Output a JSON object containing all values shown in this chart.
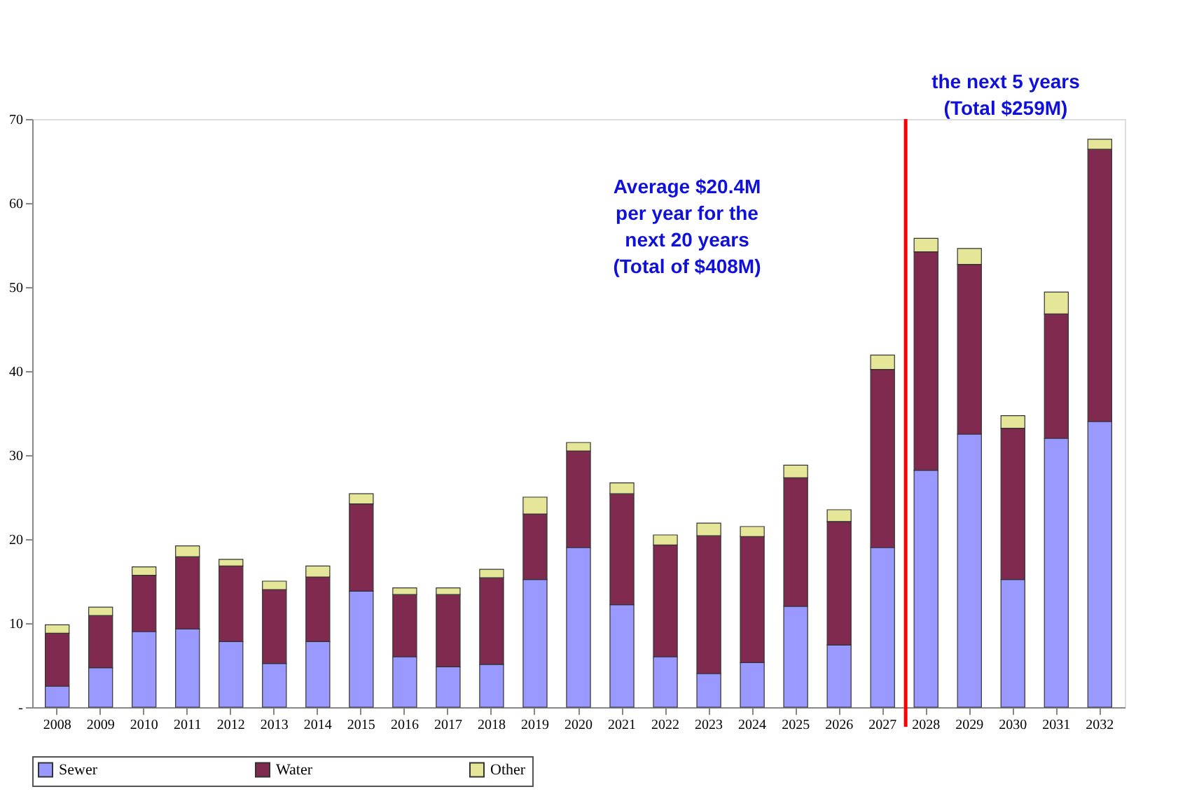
{
  "chart_data": {
    "type": "bar",
    "stacked": true,
    "categories": [
      "2008",
      "2009",
      "2010",
      "2011",
      "2012",
      "2013",
      "2014",
      "2015",
      "2016",
      "2017",
      "2018",
      "2019",
      "2020",
      "2021",
      "2022",
      "2023",
      "2024",
      "2025",
      "2026",
      "2027",
      "2028",
      "2029",
      "2030",
      "2031",
      "2032"
    ],
    "series": [
      {
        "name": "Sewer",
        "color": "#9999ff",
        "values": [
          2.5,
          4.7,
          9.0,
          9.3,
          7.8,
          5.2,
          7.8,
          13.8,
          6.0,
          4.8,
          5.1,
          15.2,
          19.0,
          12.2,
          6.0,
          4.0,
          5.3,
          12.0,
          7.4,
          19.0,
          28.2,
          32.5,
          15.2,
          32.0,
          34.0
        ]
      },
      {
        "name": "Water",
        "color": "#7f2a4e",
        "values": [
          6.3,
          6.2,
          6.7,
          8.6,
          9.0,
          8.8,
          7.7,
          10.4,
          7.4,
          8.6,
          10.3,
          7.8,
          11.5,
          13.2,
          13.3,
          16.4,
          15.0,
          15.3,
          14.7,
          21.2,
          26.0,
          20.2,
          18.0,
          14.8,
          32.4
        ]
      },
      {
        "name": "Other",
        "color": "#e6e699",
        "values": [
          1.0,
          1.0,
          1.0,
          1.3,
          0.8,
          1.0,
          1.3,
          1.2,
          0.8,
          0.8,
          1.0,
          2.0,
          1.0,
          1.3,
          1.2,
          1.5,
          1.2,
          1.5,
          1.4,
          1.7,
          1.6,
          1.9,
          1.5,
          2.6,
          1.2
        ]
      }
    ],
    "ylim": [
      0,
      70
    ],
    "yticks": [
      {
        "value": 0,
        "label": "-"
      },
      10,
      20,
      30,
      40,
      50,
      60,
      70
    ],
    "grid": false,
    "legend": "bottom",
    "ref_lines": [
      {
        "axis": "x",
        "value": "2028",
        "color": "#ff0000"
      }
    ],
    "annotations": [
      "Average $20.4M\nper year for the\nnext 20 years\n(Total of $408M)",
      "the next 5 years\n(Total $259M)"
    ]
  }
}
